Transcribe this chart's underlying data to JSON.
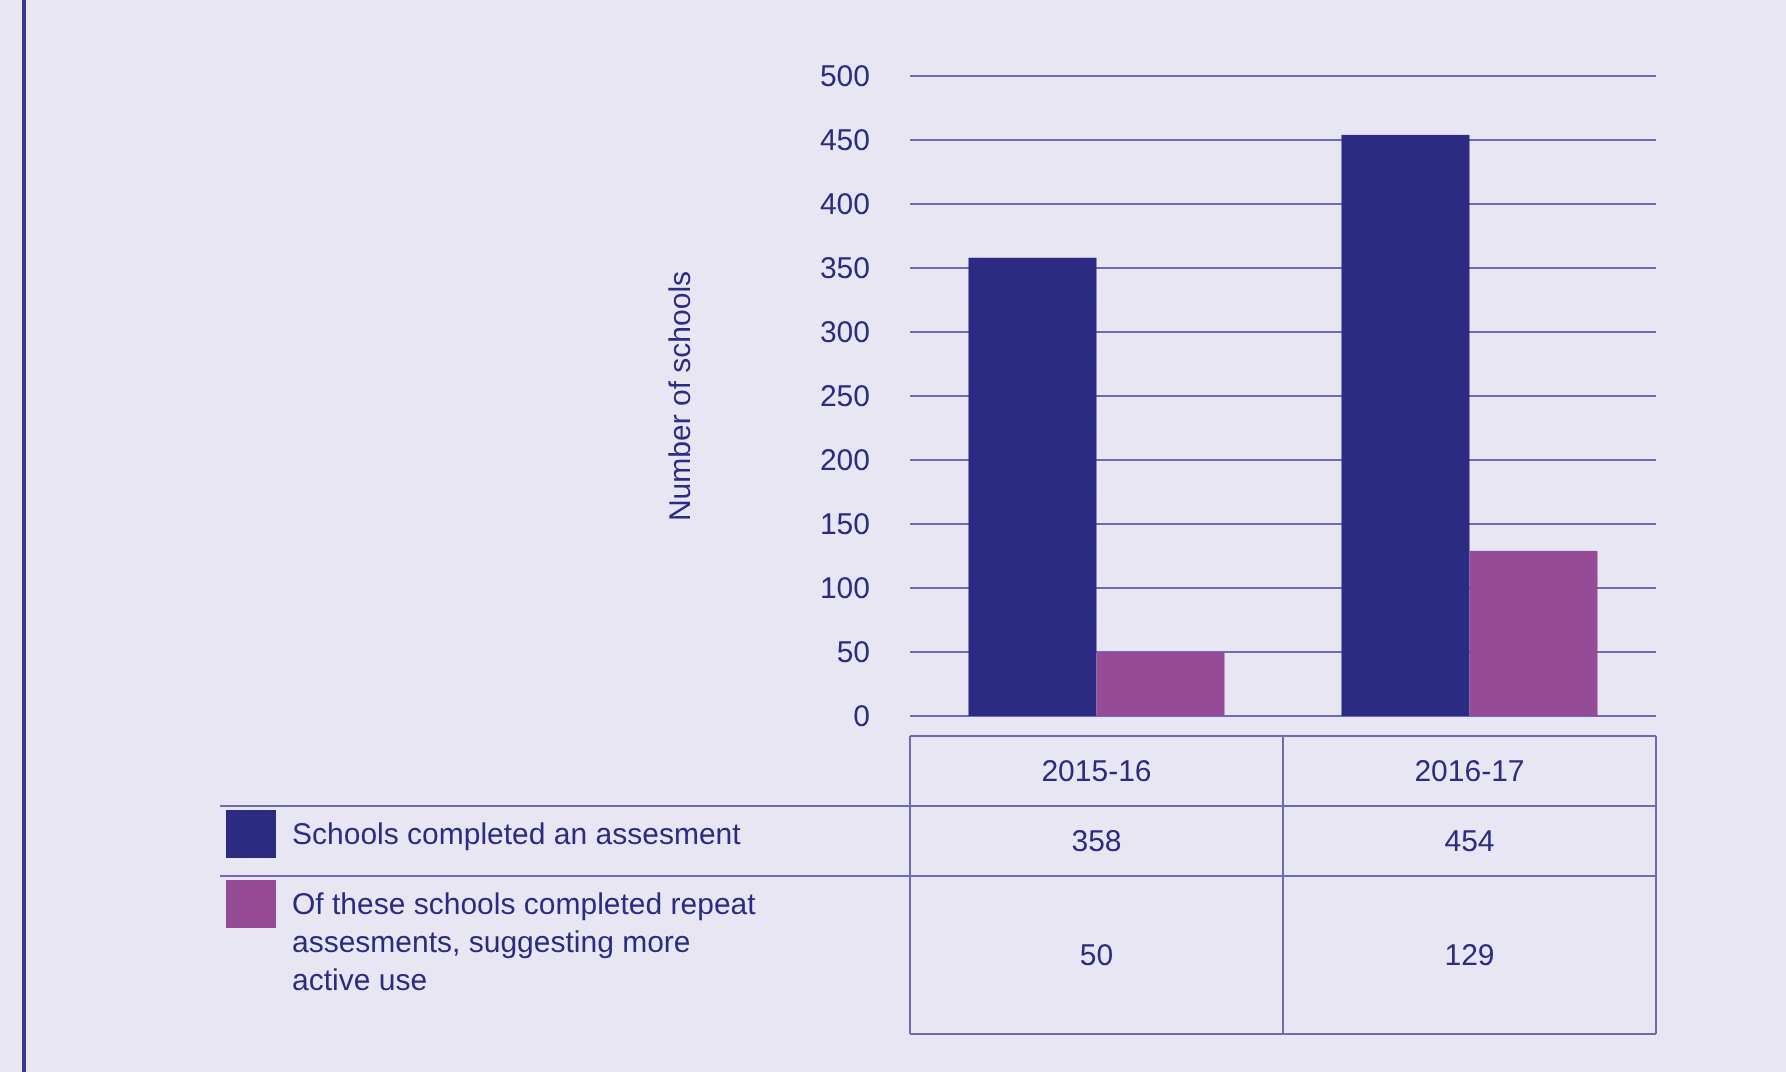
{
  "chart_data": {
    "type": "bar",
    "ylabel": "Number of schools",
    "categories": [
      "2015-16",
      "2016-17"
    ],
    "series": [
      {
        "name": "Schools completed an assesment",
        "color": "#2b2b83",
        "values": [
          358,
          454
        ]
      },
      {
        "name": "Of these schools completed repeat assesments, suggesting more active use",
        "color": "#954b96",
        "values": [
          50,
          129
        ]
      }
    ],
    "ylim": [
      0,
      500
    ],
    "yticks": [
      0,
      50,
      100,
      150,
      200,
      250,
      300,
      350,
      400,
      450,
      500
    ],
    "grid": "y",
    "legend": "bottom",
    "data_labels": true
  }
}
